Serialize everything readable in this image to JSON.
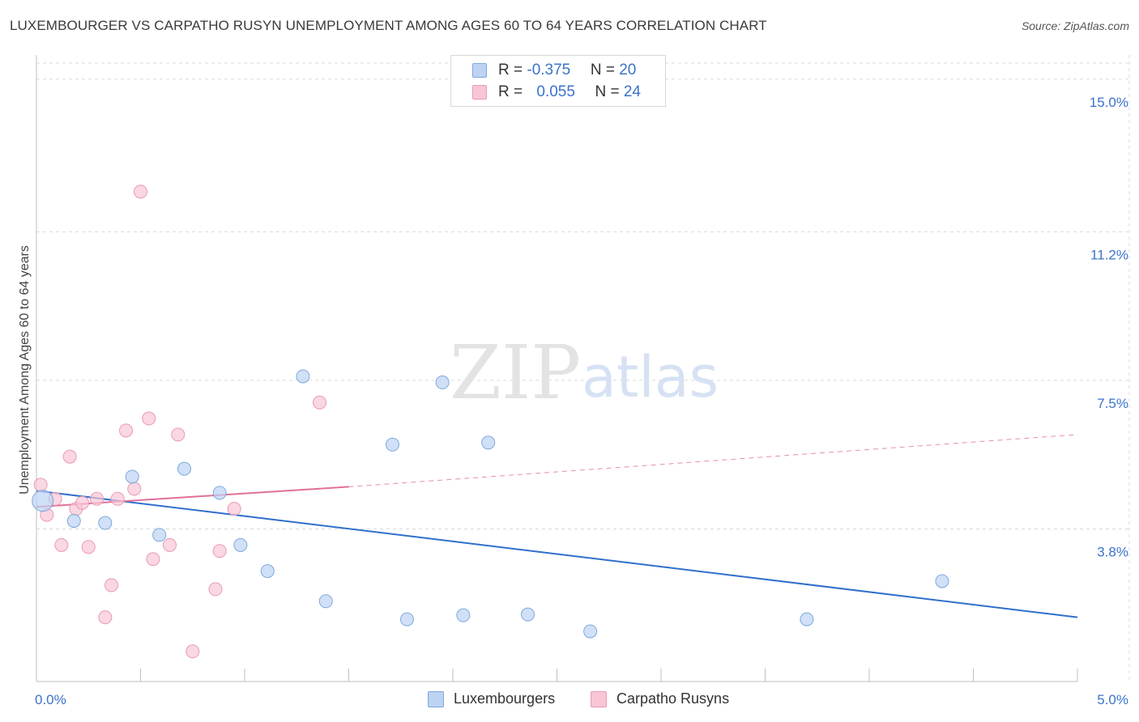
{
  "title": "LUXEMBOURGER VS CARPATHO RUSYN UNEMPLOYMENT AMONG AGES 60 TO 64 YEARS CORRELATION CHART",
  "source": "Source: ZipAtlas.com",
  "watermark": {
    "zip": "ZIP",
    "atlas": "atlas"
  },
  "legend": {
    "series1": {
      "r_label": "R = ",
      "r_value": "-0.375",
      "n_label": "N = ",
      "n_value": "20"
    },
    "series2": {
      "r_label": "R = ",
      "r_value": "0.055",
      "n_label": "N = ",
      "n_value": "24"
    }
  },
  "bottom_legend": {
    "series1": "Luxembourgers",
    "series2": "Carpatho Rusyns"
  },
  "colors": {
    "blue_fill": "#bcd3f2",
    "blue_stroke": "#7ea7de",
    "blue_line": "#2f6fcc",
    "pink_fill": "#f8c6d5",
    "pink_stroke": "#e99ab2",
    "pink_line": "#e0709a",
    "grid": "#d9d9d9",
    "axis_label": "#3b73c9"
  },
  "chart_data": {
    "type": "scatter",
    "title": "LUXEMBOURGER VS CARPATHO RUSYN UNEMPLOYMENT AMONG AGES 60 TO 64 YEARS CORRELATION CHART",
    "xlabel": "",
    "ylabel": "Unemployment Among Ages 60 to 64 years",
    "xlim": [
      0,
      5.0
    ],
    "ylim": [
      0,
      15.4
    ],
    "x_tick_labels": [
      "0.0%",
      "5.0%"
    ],
    "y_ticks": [
      3.8,
      7.5,
      11.2,
      15.0
    ],
    "y_tick_labels": [
      "3.8%",
      "7.5%",
      "11.2%",
      "15.0%"
    ],
    "series": [
      {
        "name": "Luxembourgers",
        "color": "#bcd3f2",
        "points": [
          {
            "x": 0.03,
            "y": 4.5
          },
          {
            "x": 0.18,
            "y": 4.0
          },
          {
            "x": 0.33,
            "y": 3.95
          },
          {
            "x": 0.46,
            "y": 5.1
          },
          {
            "x": 0.59,
            "y": 3.65
          },
          {
            "x": 0.71,
            "y": 5.3
          },
          {
            "x": 0.88,
            "y": 4.7
          },
          {
            "x": 0.98,
            "y": 3.4
          },
          {
            "x": 1.11,
            "y": 2.75
          },
          {
            "x": 1.28,
            "y": 7.6
          },
          {
            "x": 1.39,
            "y": 2.0
          },
          {
            "x": 1.71,
            "y": 5.9
          },
          {
            "x": 1.78,
            "y": 1.55
          },
          {
            "x": 1.95,
            "y": 7.45
          },
          {
            "x": 2.05,
            "y": 1.65
          },
          {
            "x": 2.17,
            "y": 5.95
          },
          {
            "x": 2.36,
            "y": 1.67
          },
          {
            "x": 2.66,
            "y": 1.25
          },
          {
            "x": 3.7,
            "y": 1.55
          },
          {
            "x": 4.35,
            "y": 2.5
          }
        ],
        "trend": {
          "x": [
            0,
            5.0
          ],
          "y": [
            4.75,
            1.6
          ],
          "style": "solid"
        }
      },
      {
        "name": "Carpatho Rusyns",
        "color": "#f8c6d5",
        "points": [
          {
            "x": 0.02,
            "y": 4.9
          },
          {
            "x": 0.05,
            "y": 4.15
          },
          {
            "x": 0.09,
            "y": 4.55
          },
          {
            "x": 0.12,
            "y": 3.4
          },
          {
            "x": 0.16,
            "y": 5.6
          },
          {
            "x": 0.19,
            "y": 4.3
          },
          {
            "x": 0.22,
            "y": 4.45
          },
          {
            "x": 0.25,
            "y": 3.35
          },
          {
            "x": 0.29,
            "y": 4.55
          },
          {
            "x": 0.33,
            "y": 1.6
          },
          {
            "x": 0.36,
            "y": 2.4
          },
          {
            "x": 0.39,
            "y": 4.55
          },
          {
            "x": 0.43,
            "y": 6.25
          },
          {
            "x": 0.47,
            "y": 4.8
          },
          {
            "x": 0.5,
            "y": 12.2
          },
          {
            "x": 0.54,
            "y": 6.55
          },
          {
            "x": 0.56,
            "y": 3.05
          },
          {
            "x": 0.64,
            "y": 3.4
          },
          {
            "x": 0.68,
            "y": 6.15
          },
          {
            "x": 0.75,
            "y": 0.75
          },
          {
            "x": 0.86,
            "y": 2.3
          },
          {
            "x": 0.88,
            "y": 3.25
          },
          {
            "x": 0.95,
            "y": 4.3
          },
          {
            "x": 1.36,
            "y": 6.95
          }
        ],
        "trend": {
          "x": [
            0,
            1.5
          ],
          "y": [
            4.35,
            4.85
          ],
          "style": "solid",
          "extension": {
            "x": [
              1.5,
              5.0
            ],
            "y": [
              4.85,
              6.15
            ],
            "style": "dashed"
          }
        }
      }
    ]
  }
}
